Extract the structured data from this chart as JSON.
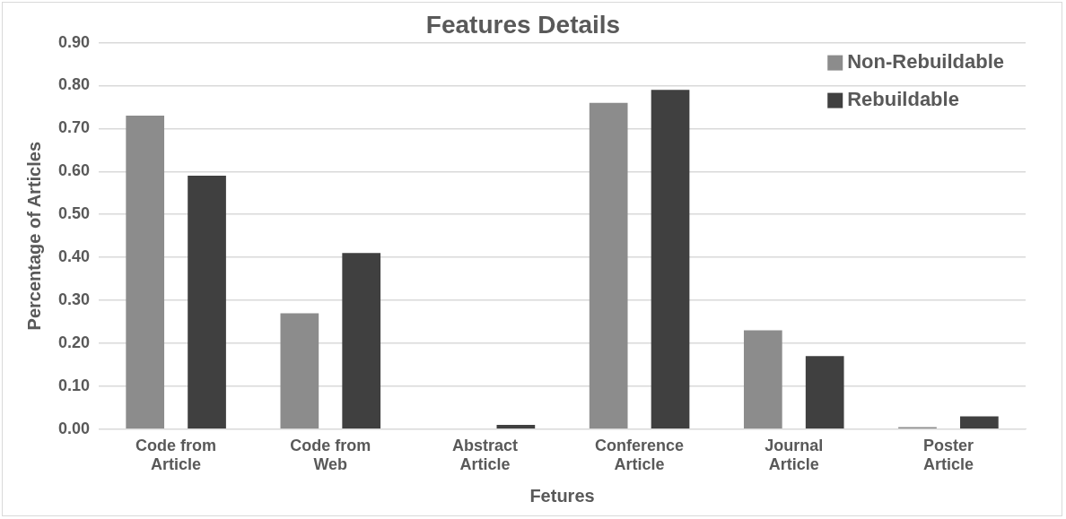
{
  "chart_data": {
    "type": "bar",
    "title": "Features Details",
    "xlabel": "Fetures",
    "ylabel": "Percentage of Articles",
    "categories": [
      "Code from Article",
      "Code from Web",
      "Abstract Article",
      "Conference Article",
      "Journal Article",
      "Poster Article"
    ],
    "series": [
      {
        "name": "Non-Rebuildable",
        "color": "#8c8c8c",
        "values": [
          0.73,
          0.27,
          0,
          0.76,
          0.23,
          0.005
        ]
      },
      {
        "name": "Rebuildable",
        "color": "#404040",
        "values": [
          0.59,
          0.41,
          0.01,
          0.79,
          0.17,
          0.03
        ]
      }
    ],
    "ylim": [
      0,
      0.9
    ],
    "yticks": [
      {
        "value": 0,
        "label": "0.00"
      },
      {
        "value": 0.1,
        "label": "0.10"
      },
      {
        "value": 0.2,
        "label": "0.20"
      },
      {
        "value": 0.3,
        "label": "0.30"
      },
      {
        "value": 0.4,
        "label": "0.40"
      },
      {
        "value": 0.5,
        "label": "0.50"
      },
      {
        "value": 0.6,
        "label": "0.60"
      },
      {
        "value": 0.7,
        "label": "0.70"
      },
      {
        "value": 0.8,
        "label": "0.80"
      },
      {
        "value": 0.9,
        "label": "0.90"
      }
    ],
    "grid": "y",
    "legend": "top right"
  }
}
